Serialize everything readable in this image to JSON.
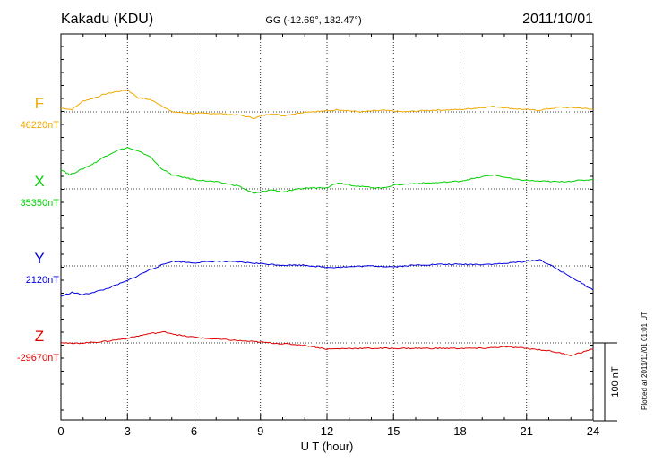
{
  "header": {
    "station": "Kakadu (KDU)",
    "coords": "GG (-12.69°, 132.47°)",
    "date": "2011/10/01"
  },
  "footer": {
    "plotted": "Plotted at 2011/11/01 01:01 UT"
  },
  "chart_data": {
    "type": "line",
    "xlabel": "U T (hour)",
    "xlim": [
      0,
      24
    ],
    "xticks": [
      "0",
      "3",
      "6",
      "9",
      "12",
      "15",
      "18",
      "21",
      "24"
    ],
    "grid": true,
    "scale": {
      "label": "100 nT",
      "value_nT": 100
    },
    "series": [
      {
        "name": "F",
        "baseline_label": "46220nT",
        "baseline_nT": 46220,
        "color": "#f0a800",
        "points": [
          [
            0,
            46225
          ],
          [
            0.5,
            46223
          ],
          [
            1,
            46234
          ],
          [
            1.5,
            46238
          ],
          [
            2,
            46243
          ],
          [
            2.5,
            46246
          ],
          [
            3,
            46248
          ],
          [
            3.5,
            46238
          ],
          [
            4,
            46236
          ],
          [
            4.5,
            46229
          ],
          [
            5,
            46220
          ],
          [
            6,
            46218
          ],
          [
            7,
            46218
          ],
          [
            8,
            46216
          ],
          [
            8.7,
            46212
          ],
          [
            9.5,
            46218
          ],
          [
            10,
            46215
          ],
          [
            11,
            46220
          ],
          [
            12,
            46221
          ],
          [
            12.5,
            46223
          ],
          [
            13.5,
            46220
          ],
          [
            14.5,
            46222
          ],
          [
            15.5,
            46220
          ],
          [
            16.5,
            46222
          ],
          [
            18,
            46223
          ],
          [
            19.5,
            46227
          ],
          [
            20.5,
            46224
          ],
          [
            21.5,
            46222
          ],
          [
            22.5,
            46226
          ],
          [
            23.5,
            46225
          ],
          [
            24,
            46223
          ]
        ]
      },
      {
        "name": "X",
        "baseline_label": "35350nT",
        "baseline_nT": 35350,
        "color": "#00d000",
        "points": [
          [
            0,
            35375
          ],
          [
            0.4,
            35368
          ],
          [
            1,
            35376
          ],
          [
            1.5,
            35383
          ],
          [
            2,
            35392
          ],
          [
            2.5,
            35399
          ],
          [
            3,
            35403
          ],
          [
            3.5,
            35398
          ],
          [
            4,
            35392
          ],
          [
            4.5,
            35377
          ],
          [
            5,
            35368
          ],
          [
            6,
            35362
          ],
          [
            7,
            35359
          ],
          [
            8,
            35354
          ],
          [
            8.7,
            35344
          ],
          [
            9.5,
            35349
          ],
          [
            10,
            35346
          ],
          [
            11,
            35351
          ],
          [
            12,
            35352
          ],
          [
            12.5,
            35358
          ],
          [
            13.5,
            35353
          ],
          [
            14.5,
            35351
          ],
          [
            15,
            35355
          ],
          [
            16,
            35357
          ],
          [
            17,
            35358
          ],
          [
            18,
            35360
          ],
          [
            19.5,
            35368
          ],
          [
            20.5,
            35362
          ],
          [
            21.5,
            35360
          ],
          [
            22.5,
            35359
          ],
          [
            23.5,
            35361
          ],
          [
            24,
            35362
          ]
        ]
      },
      {
        "name": "Y",
        "baseline_label": "2120nT",
        "baseline_nT": 2120,
        "color": "#0000e0",
        "points": [
          [
            0,
            2081
          ],
          [
            0.5,
            2086
          ],
          [
            1,
            2083
          ],
          [
            2,
            2090
          ],
          [
            3,
            2101
          ],
          [
            4,
            2115
          ],
          [
            5,
            2126
          ],
          [
            6,
            2124
          ],
          [
            7,
            2126
          ],
          [
            8,
            2125
          ],
          [
            9,
            2123
          ],
          [
            10,
            2121
          ],
          [
            11,
            2121
          ],
          [
            12,
            2118
          ],
          [
            13,
            2119
          ],
          [
            14,
            2120
          ],
          [
            15,
            2119
          ],
          [
            16,
            2121
          ],
          [
            17,
            2122
          ],
          [
            18,
            2122
          ],
          [
            19,
            2122
          ],
          [
            20,
            2123
          ],
          [
            21,
            2126
          ],
          [
            21.6,
            2128
          ],
          [
            22,
            2122
          ],
          [
            23,
            2106
          ],
          [
            24,
            2089
          ]
        ]
      },
      {
        "name": "Z",
        "baseline_label": "-29670nT",
        "baseline_nT": -29670,
        "color": "#e00000",
        "points": [
          [
            0,
            -29669
          ],
          [
            0.5,
            -29671
          ],
          [
            1,
            -29670
          ],
          [
            2,
            -29668
          ],
          [
            3,
            -29664
          ],
          [
            4,
            -29658
          ],
          [
            4.7,
            -29656
          ],
          [
            5.5,
            -29661
          ],
          [
            6.5,
            -29664
          ],
          [
            8,
            -29667
          ],
          [
            9.5,
            -29670
          ],
          [
            11,
            -29673
          ],
          [
            12,
            -29678
          ],
          [
            13,
            -29677
          ],
          [
            14,
            -29677
          ],
          [
            15,
            -29677
          ],
          [
            16,
            -29677
          ],
          [
            17,
            -29677
          ],
          [
            18,
            -29677
          ],
          [
            19,
            -29677
          ],
          [
            20,
            -29675
          ],
          [
            21,
            -29677
          ],
          [
            22,
            -29680
          ],
          [
            23,
            -29686
          ],
          [
            24,
            -29678
          ]
        ]
      }
    ]
  }
}
